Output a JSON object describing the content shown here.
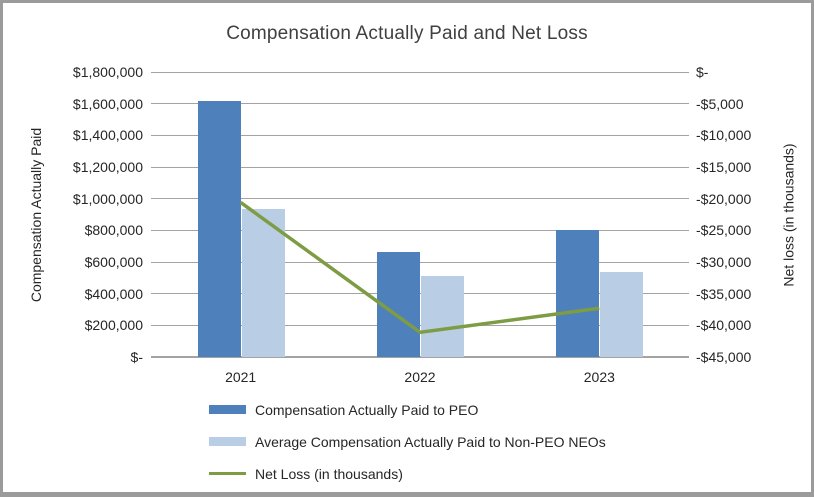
{
  "chart_data": {
    "type": "bar",
    "subtype": "combo-bar-line-dual-axis",
    "title": "Compensation Actually Paid and Net Loss",
    "categories": [
      "2021",
      "2022",
      "2023"
    ],
    "series": [
      {
        "name": "Compensation Actually Paid to PEO",
        "render": "bar",
        "axis": "left",
        "color": "#4E80BC",
        "values": [
          1615000,
          665000,
          800000
        ]
      },
      {
        "name": "Average Compensation Actually Paid to Non-PEO NEOs",
        "render": "bar",
        "axis": "left",
        "color": "#B9CDE5",
        "values": [
          935000,
          510000,
          535000
        ]
      },
      {
        "name": "Net Loss (in thousands)",
        "render": "line",
        "axis": "right",
        "color": "#7D9C44",
        "values": [
          -20600,
          -41100,
          -37300
        ]
      }
    ],
    "left_axis": {
      "label": "Compensation Actually Paid",
      "min": 0,
      "max": 1800000,
      "step": 200000,
      "tick_labels_top_to_bottom": [
        "$1,800,000",
        "$1,600,000",
        "$1,400,000",
        "$1,200,000",
        "$1,000,000",
        "$800,000",
        "$600,000",
        "$400,000",
        "$200,000",
        "$-"
      ]
    },
    "right_axis": {
      "label": "Net loss (in thousands)",
      "min": -45000,
      "max": 0,
      "step": -5000,
      "tick_labels_top_to_bottom": [
        "$-",
        "-$5,000",
        "-$10,000",
        "-$15,000",
        "-$20,000",
        "-$25,000",
        "-$30,000",
        "-$35,000",
        "-$40,000",
        "-$45,000"
      ]
    },
    "grid": true,
    "legend_position": "bottom-left"
  }
}
